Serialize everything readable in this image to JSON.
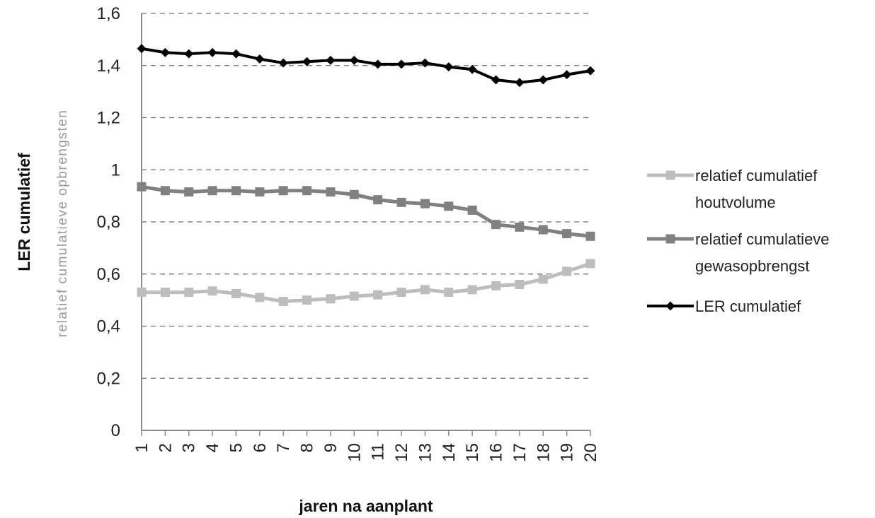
{
  "chart_data": {
    "type": "line",
    "categories": [
      "1",
      "2",
      "3",
      "4",
      "5",
      "6",
      "7",
      "8",
      "9",
      "10",
      "11",
      "12",
      "13",
      "14",
      "15",
      "16",
      "17",
      "18",
      "19",
      "20"
    ],
    "xlabel": "jaren na aanplant",
    "ylabel": "LER cumulatief",
    "ylabel_secondary": "relatief cumulatieve opbrengsten",
    "ylim": [
      0,
      1.6
    ],
    "yticks": [
      "0",
      "0,2",
      "0,4",
      "0,6",
      "0,8",
      "1",
      "1,2",
      "1,4",
      "1,6"
    ],
    "grid": true,
    "legend_position": "right",
    "series": [
      {
        "name": "relatief cumulatief houtvolume",
        "legend_lines": [
          "relatief cumulatief",
          "houtvolume"
        ],
        "color": "#bdbdbd",
        "marker": "square",
        "values": [
          0.53,
          0.53,
          0.53,
          0.535,
          0.525,
          0.51,
          0.495,
          0.5,
          0.505,
          0.515,
          0.52,
          0.53,
          0.54,
          0.53,
          0.54,
          0.555,
          0.56,
          0.58,
          0.61,
          0.64
        ]
      },
      {
        "name": "relatief cumulatieve gewasopbrengst",
        "legend_lines": [
          "relatief cumulatieve",
          "gewasopbrengst"
        ],
        "color": "#808080",
        "marker": "square",
        "values": [
          0.935,
          0.92,
          0.915,
          0.92,
          0.92,
          0.915,
          0.92,
          0.92,
          0.915,
          0.905,
          0.885,
          0.875,
          0.87,
          0.86,
          0.845,
          0.79,
          0.78,
          0.77,
          0.755,
          0.745
        ]
      },
      {
        "name": "LER cumulatief",
        "legend_lines": [
          "LER cumulatief"
        ],
        "color": "#000000",
        "marker": "diamond",
        "values": [
          1.465,
          1.45,
          1.445,
          1.45,
          1.445,
          1.425,
          1.41,
          1.415,
          1.42,
          1.42,
          1.405,
          1.405,
          1.41,
          1.395,
          1.385,
          1.345,
          1.335,
          1.345,
          1.365,
          1.38
        ]
      }
    ]
  }
}
